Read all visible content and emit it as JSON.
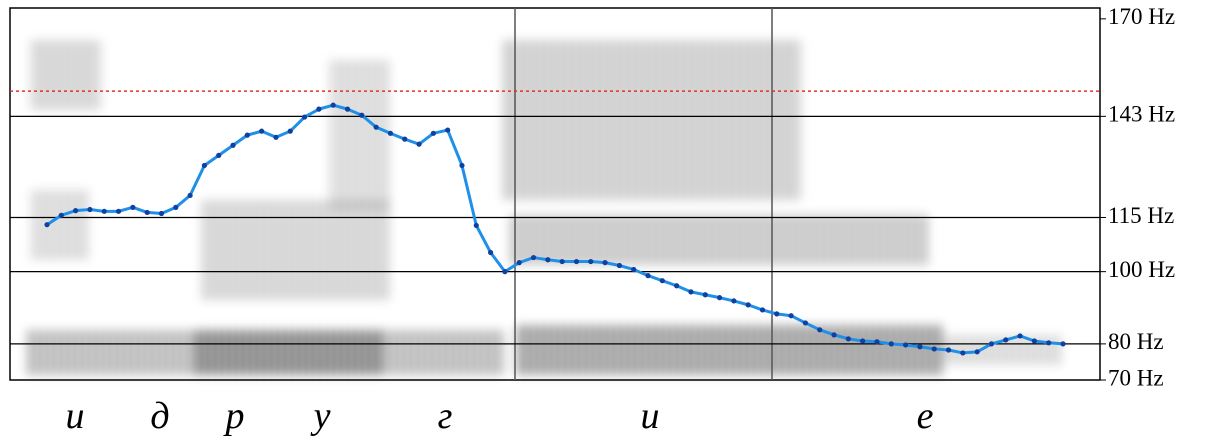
{
  "chart_data": {
    "type": "line",
    "ylim": [
      70,
      173
    ],
    "yticks": [
      {
        "value": 170,
        "label": "170 Hz"
      },
      {
        "value": 143,
        "label": "143 Hz"
      },
      {
        "value": 115,
        "label": "115 Hz"
      },
      {
        "value": 100,
        "label": "100 Hz"
      },
      {
        "value": 80,
        "label": "80 Hz"
      },
      {
        "value": 70,
        "label": "70 Hz"
      }
    ],
    "grid_values": [
      143,
      115,
      100,
      80
    ],
    "reference_value": 150,
    "reference_color": "#e03030",
    "color": "#1e90e8",
    "marker_color": "#1040a0",
    "phonemes": [
      "и",
      "д",
      "р",
      "у",
      "г",
      "и",
      "е"
    ],
    "values": [
      113,
      115.6,
      116.9,
      117.2,
      116.7,
      116.7,
      117.8,
      116.4,
      116.1,
      117.8,
      121.1,
      129.4,
      132.2,
      135,
      137.8,
      138.9,
      137.2,
      138.9,
      142.8,
      145,
      146.1,
      145,
      143.3,
      140,
      138.3,
      136.7,
      135.3,
      138.3,
      139.2,
      129.4,
      112.8,
      105.3,
      100,
      102.5,
      103.9,
      103.3,
      102.8,
      102.8,
      102.8,
      102.5,
      101.7,
      100.6,
      98.9,
      97.5,
      96.1,
      94.4,
      93.6,
      92.8,
      91.9,
      90.8,
      89.4,
      88.3,
      87.8,
      85.8,
      83.9,
      82.5,
      81.4,
      80.8,
      80.6,
      80,
      79.7,
      79.2,
      78.6,
      78.3,
      77.5,
      77.8,
      80,
      81.1,
      82.2,
      80.8,
      80.3,
      80
    ]
  }
}
